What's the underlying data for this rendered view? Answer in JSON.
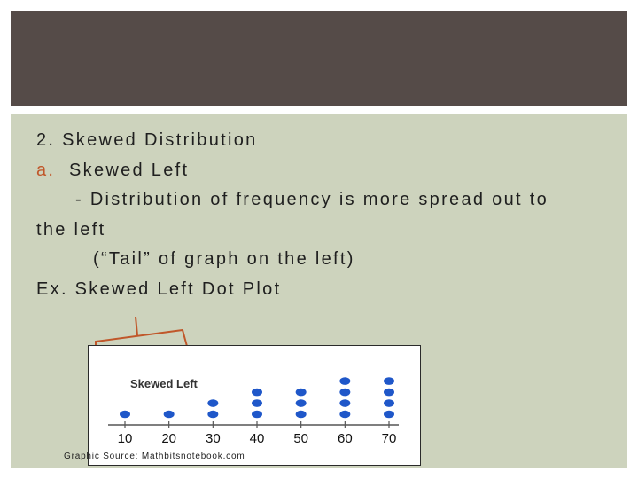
{
  "slide": {
    "line1": "2. Skewed Distribution",
    "line2_marker": "a.",
    "line2_text": "Skewed Left",
    "line3": "- Distribution of frequency is more spread out to",
    "line4": "the left",
    "line5": "(“Tail” of graph on the left)",
    "line6": "Ex. Skewed Left Dot Plot",
    "source": "Graphic Source: Mathbitsnotebook.com"
  },
  "colors": {
    "header": "#554b48",
    "panel": "#cdd3bd",
    "accent": "#c0572a",
    "dot": "#1f57c9"
  },
  "chart_data": {
    "type": "scatter",
    "title": "Skewed Left",
    "categories": [
      "10",
      "20",
      "30",
      "40",
      "50",
      "60",
      "70"
    ],
    "x": [
      10,
      20,
      30,
      40,
      50,
      60,
      70
    ],
    "values": [
      1,
      1,
      2,
      3,
      3,
      4,
      4
    ],
    "xlim": [
      10,
      70
    ],
    "grid": false
  }
}
